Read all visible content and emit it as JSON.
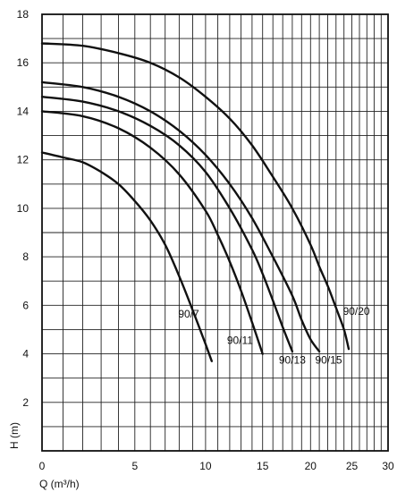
{
  "chart_data": {
    "type": "line",
    "title": "",
    "xlabel": "Q (m³/h)",
    "ylabel": "H (m)",
    "xscale": "log",
    "xlim": [
      0,
      30
    ],
    "ylim": [
      0,
      18
    ],
    "xticks": [
      0,
      5,
      10,
      15,
      20,
      25,
      30
    ],
    "xtick_labels": [
      "0",
      "5",
      "10",
      "15",
      "20",
      "25",
      "30"
    ],
    "yticks": [
      2,
      4,
      6,
      8,
      10,
      12,
      14,
      16,
      18
    ],
    "ytick_labels": [
      "2",
      "4",
      "6",
      "8",
      "10",
      "12",
      "14",
      "16",
      "18"
    ],
    "grid": true,
    "legend": "curve labels placed next to each curve",
    "series": [
      {
        "name": "90/7",
        "x": [
          0,
          1,
          2,
          3,
          4,
          5,
          6,
          7,
          8,
          9,
          10,
          10.5
        ],
        "y": [
          12.3,
          12.1,
          11.9,
          11.5,
          11.0,
          10.3,
          9.5,
          8.5,
          7.2,
          5.8,
          4.4,
          3.7
        ]
      },
      {
        "name": "90/11",
        "x": [
          0,
          2,
          4,
          6,
          8,
          10,
          11,
          12,
          13,
          14,
          15
        ],
        "y": [
          14.0,
          13.8,
          13.3,
          12.5,
          11.4,
          9.9,
          8.9,
          7.8,
          6.6,
          5.3,
          4.0
        ]
      },
      {
        "name": "90/13",
        "x": [
          0,
          2,
          4,
          6,
          8,
          10,
          12,
          14,
          15,
          16,
          17,
          18
        ],
        "y": [
          14.6,
          14.4,
          14.0,
          13.4,
          12.6,
          11.5,
          10.0,
          8.3,
          7.3,
          6.2,
          5.1,
          4.1
        ]
      },
      {
        "name": "90/15",
        "x": [
          0,
          2,
          4,
          6,
          8,
          10,
          12,
          14,
          16,
          18,
          19,
          20,
          21
        ],
        "y": [
          15.2,
          15.0,
          14.6,
          14.0,
          13.2,
          12.2,
          11.0,
          9.6,
          8.0,
          6.4,
          5.4,
          4.6,
          4.1
        ]
      },
      {
        "name": "90/20",
        "x": [
          0,
          2,
          4,
          6,
          8,
          10,
          12,
          14,
          16,
          18,
          20,
          21,
          22,
          23,
          24,
          24.6
        ],
        "y": [
          16.8,
          16.7,
          16.4,
          16.0,
          15.4,
          14.6,
          13.7,
          12.6,
          11.3,
          10.0,
          8.5,
          7.6,
          6.8,
          5.9,
          5.0,
          4.2
        ]
      }
    ],
    "labels": {
      "90/7": [
        8.7,
        5.5
      ],
      "90/11": [
        12.9,
        4.4
      ],
      "90/13": [
        18.0,
        3.6
      ],
      "90/15": [
        22.1,
        3.6
      ],
      "90/20": [
        25.6,
        5.6
      ]
    }
  }
}
